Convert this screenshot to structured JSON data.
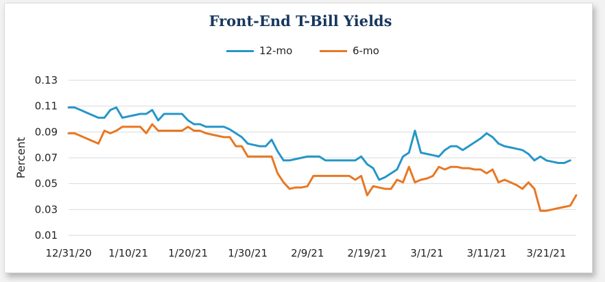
{
  "chart_data": {
    "type": "line",
    "title": "Front-End T-Bill Yields",
    "ylabel": "Percent",
    "xlabel": "",
    "ylim": [
      0.01,
      0.13
    ],
    "yticks": [
      "0.13",
      "0.11",
      "0.09",
      "0.07",
      "0.05",
      "0.03",
      "0.01"
    ],
    "xticks": [
      "12/31/20",
      "1/10/21",
      "1/20/21",
      "1/30/21",
      "2/9/21",
      "2/19/21",
      "3/1/21",
      "3/11/21",
      "3/21/21"
    ],
    "x_start_date": "12/31/20",
    "legend_position": "top-center",
    "grid": "horizontal",
    "series": [
      {
        "name": "12-mo",
        "color": "#2596c8",
        "points": [
          [
            0,
            0.109
          ],
          [
            1,
            0.109
          ],
          [
            2,
            0.107
          ],
          [
            3,
            0.105
          ],
          [
            4,
            0.103
          ],
          [
            5,
            0.101
          ],
          [
            6,
            0.101
          ],
          [
            7,
            0.107
          ],
          [
            8,
            0.109
          ],
          [
            9,
            0.101
          ],
          [
            10,
            0.102
          ],
          [
            11,
            0.103
          ],
          [
            12,
            0.104
          ],
          [
            13,
            0.104
          ],
          [
            14,
            0.107
          ],
          [
            15,
            0.099
          ],
          [
            16,
            0.104
          ],
          [
            17,
            0.104
          ],
          [
            18,
            0.104
          ],
          [
            19,
            0.104
          ],
          [
            20,
            0.099
          ],
          [
            21,
            0.096
          ],
          [
            22,
            0.096
          ],
          [
            23,
            0.094
          ],
          [
            24,
            0.094
          ],
          [
            25,
            0.094
          ],
          [
            26,
            0.094
          ],
          [
            27,
            0.092
          ],
          [
            28,
            0.089
          ],
          [
            29,
            0.086
          ],
          [
            30,
            0.081
          ],
          [
            31,
            0.08
          ],
          [
            32,
            0.079
          ],
          [
            33,
            0.079
          ],
          [
            34,
            0.084
          ],
          [
            35,
            0.075
          ],
          [
            36,
            0.068
          ],
          [
            37,
            0.068
          ],
          [
            38,
            0.069
          ],
          [
            39,
            0.07
          ],
          [
            40,
            0.071
          ],
          [
            41,
            0.071
          ],
          [
            42,
            0.071
          ],
          [
            43,
            0.068
          ],
          [
            44,
            0.068
          ],
          [
            45,
            0.068
          ],
          [
            46,
            0.068
          ],
          [
            47,
            0.068
          ],
          [
            48,
            0.068
          ],
          [
            49,
            0.071
          ],
          [
            50,
            0.065
          ],
          [
            51,
            0.062
          ],
          [
            52,
            0.053
          ],
          [
            53,
            0.055
          ],
          [
            54,
            0.058
          ],
          [
            55,
            0.061
          ],
          [
            56,
            0.071
          ],
          [
            57,
            0.074
          ],
          [
            58,
            0.091
          ],
          [
            59,
            0.074
          ],
          [
            60,
            0.073
          ],
          [
            61,
            0.072
          ],
          [
            62,
            0.071
          ],
          [
            63,
            0.076
          ],
          [
            64,
            0.079
          ],
          [
            65,
            0.079
          ],
          [
            66,
            0.076
          ],
          [
            67,
            0.079
          ],
          [
            68,
            0.082
          ],
          [
            69,
            0.085
          ],
          [
            70,
            0.089
          ],
          [
            71,
            0.086
          ],
          [
            72,
            0.081
          ],
          [
            73,
            0.079
          ],
          [
            74,
            0.078
          ],
          [
            75,
            0.077
          ],
          [
            76,
            0.076
          ],
          [
            77,
            0.073
          ],
          [
            78,
            0.068
          ],
          [
            79,
            0.071
          ],
          [
            80,
            0.068
          ],
          [
            81,
            0.067
          ],
          [
            82,
            0.066
          ],
          [
            83,
            0.066
          ],
          [
            84,
            0.068
          ]
        ]
      },
      {
        "name": "6-mo",
        "color": "#e87722",
        "points": [
          [
            0,
            0.089
          ],
          [
            1,
            0.089
          ],
          [
            2,
            0.087
          ],
          [
            3,
            0.085
          ],
          [
            4,
            0.083
          ],
          [
            5,
            0.081
          ],
          [
            6,
            0.091
          ],
          [
            7,
            0.089
          ],
          [
            8,
            0.091
          ],
          [
            9,
            0.094
          ],
          [
            10,
            0.094
          ],
          [
            11,
            0.094
          ],
          [
            12,
            0.094
          ],
          [
            13,
            0.089
          ],
          [
            14,
            0.096
          ],
          [
            15,
            0.091
          ],
          [
            16,
            0.091
          ],
          [
            17,
            0.091
          ],
          [
            18,
            0.091
          ],
          [
            19,
            0.091
          ],
          [
            20,
            0.094
          ],
          [
            21,
            0.091
          ],
          [
            22,
            0.091
          ],
          [
            23,
            0.089
          ],
          [
            24,
            0.088
          ],
          [
            25,
            0.087
          ],
          [
            26,
            0.086
          ],
          [
            27,
            0.086
          ],
          [
            28,
            0.079
          ],
          [
            29,
            0.079
          ],
          [
            30,
            0.071
          ],
          [
            31,
            0.071
          ],
          [
            32,
            0.071
          ],
          [
            33,
            0.071
          ],
          [
            34,
            0.071
          ],
          [
            35,
            0.058
          ],
          [
            36,
            0.051
          ],
          [
            37,
            0.046
          ],
          [
            38,
            0.047
          ],
          [
            39,
            0.047
          ],
          [
            40,
            0.048
          ],
          [
            41,
            0.056
          ],
          [
            42,
            0.056
          ],
          [
            43,
            0.056
          ],
          [
            44,
            0.056
          ],
          [
            45,
            0.056
          ],
          [
            46,
            0.056
          ],
          [
            47,
            0.056
          ],
          [
            48,
            0.053
          ],
          [
            49,
            0.056
          ],
          [
            50,
            0.041
          ],
          [
            51,
            0.048
          ],
          [
            52,
            0.047
          ],
          [
            53,
            0.046
          ],
          [
            54,
            0.046
          ],
          [
            55,
            0.053
          ],
          [
            56,
            0.051
          ],
          [
            57,
            0.063
          ],
          [
            58,
            0.051
          ],
          [
            59,
            0.053
          ],
          [
            60,
            0.054
          ],
          [
            61,
            0.056
          ],
          [
            62,
            0.063
          ],
          [
            63,
            0.061
          ],
          [
            64,
            0.063
          ],
          [
            65,
            0.063
          ],
          [
            66,
            0.062
          ],
          [
            67,
            0.062
          ],
          [
            68,
            0.061
          ],
          [
            69,
            0.061
          ],
          [
            70,
            0.058
          ],
          [
            71,
            0.061
          ],
          [
            72,
            0.051
          ],
          [
            73,
            0.053
          ],
          [
            74,
            0.051
          ],
          [
            75,
            0.049
          ],
          [
            76,
            0.046
          ],
          [
            77,
            0.051
          ],
          [
            78,
            0.046
          ],
          [
            79,
            0.029
          ],
          [
            80,
            0.029
          ],
          [
            81,
            0.03
          ],
          [
            82,
            0.031
          ],
          [
            83,
            0.032
          ],
          [
            84,
            0.033
          ],
          [
            85,
            0.041
          ]
        ]
      }
    ]
  }
}
